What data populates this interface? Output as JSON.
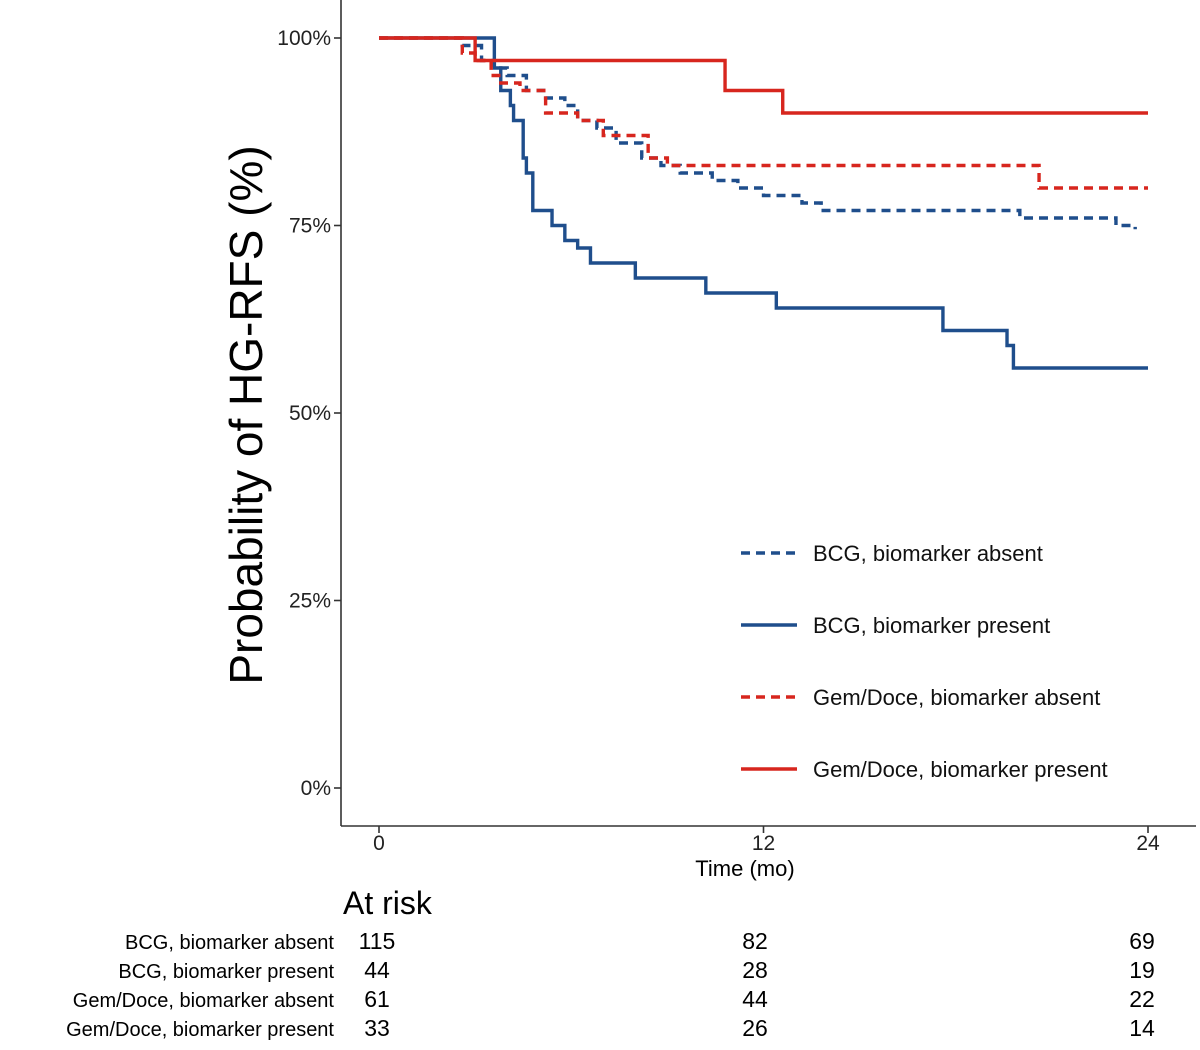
{
  "chart_data": {
    "type": "line",
    "subtype": "kaplan-meier step curves",
    "title": "",
    "ylabel": "Probability of HG-RFS (%)",
    "xlabel": "Time (mo)",
    "xlim": [
      0,
      24
    ],
    "ylim": [
      0,
      100
    ],
    "x_ticks": [
      0,
      12,
      24
    ],
    "y_ticks": [
      0,
      25,
      50,
      75,
      100
    ],
    "y_tick_labels": [
      "0%",
      "25%",
      "50%",
      "75%",
      "100%"
    ],
    "grid": false,
    "legend_position": "bottom-right",
    "series": [
      {
        "name": "BCG, biomarker absent",
        "color": "#1f4e8c",
        "dashed": true,
        "x": [
          0,
          2.6,
          3.2,
          3.6,
          4.0,
          4.6,
          5.2,
          5.8,
          6.2,
          6.8,
          7.4,
          8.2,
          8.8,
          9.4,
          10.4,
          11.2,
          12.0,
          12.6,
          13.2,
          13.8,
          16.0,
          18.0,
          20.0,
          22.0,
          23.0,
          23.6
        ],
        "y": [
          100,
          99,
          97,
          96,
          95,
          93,
          92,
          91,
          89,
          88,
          86,
          84,
          83,
          82,
          81,
          80,
          79,
          79,
          78,
          77,
          77,
          77,
          76,
          76,
          75,
          74.5
        ]
      },
      {
        "name": "BCG, biomarker present",
        "color": "#1f4e8c",
        "dashed": false,
        "x": [
          0,
          3.4,
          3.6,
          3.8,
          4.1,
          4.2,
          4.5,
          4.6,
          4.8,
          5.4,
          5.8,
          6.2,
          6.6,
          8.0,
          9.4,
          10.2,
          11.8,
          12.4,
          16.0,
          17.6,
          19.4,
          19.6,
          19.8,
          24.0
        ],
        "y": [
          100,
          100,
          96,
          93,
          91,
          89,
          84,
          82,
          77,
          75,
          73,
          72,
          70,
          68,
          68,
          66,
          66,
          64,
          64,
          61,
          61,
          59,
          56,
          56
        ]
      },
      {
        "name": "Gem/Doce, biomarker absent",
        "color": "#d7261e",
        "dashed": true,
        "x": [
          0,
          2.6,
          3.0,
          3.5,
          3.8,
          4.4,
          5.2,
          6.2,
          7.0,
          8.0,
          8.4,
          9.0,
          12.0,
          16.0,
          20.0,
          20.6,
          24.0
        ],
        "y": [
          100,
          98,
          97,
          95,
          94,
          93,
          90,
          89,
          87,
          87,
          84,
          83,
          83,
          83,
          83,
          80,
          80
        ]
      },
      {
        "name": "Gem/Doce, biomarker present",
        "color": "#d7261e",
        "dashed": false,
        "x": [
          0,
          2.9,
          3.0,
          3.6,
          10.4,
          10.8,
          12.6,
          24.0
        ],
        "y": [
          100,
          100,
          97,
          97,
          97,
          93,
          90,
          90
        ]
      }
    ],
    "at_risk": {
      "title": "At risk",
      "timepoints": [
        0,
        12,
        24
      ],
      "rows": [
        {
          "label": "BCG, biomarker absent",
          "counts": [
            115,
            82,
            69
          ]
        },
        {
          "label": "BCG, biomarker present",
          "counts": [
            44,
            28,
            19
          ]
        },
        {
          "label": "Gem/Doce, biomarker absent",
          "counts": [
            61,
            44,
            22
          ]
        },
        {
          "label": "Gem/Doce, biomarker present",
          "counts": [
            33,
            26,
            14
          ]
        }
      ]
    }
  }
}
